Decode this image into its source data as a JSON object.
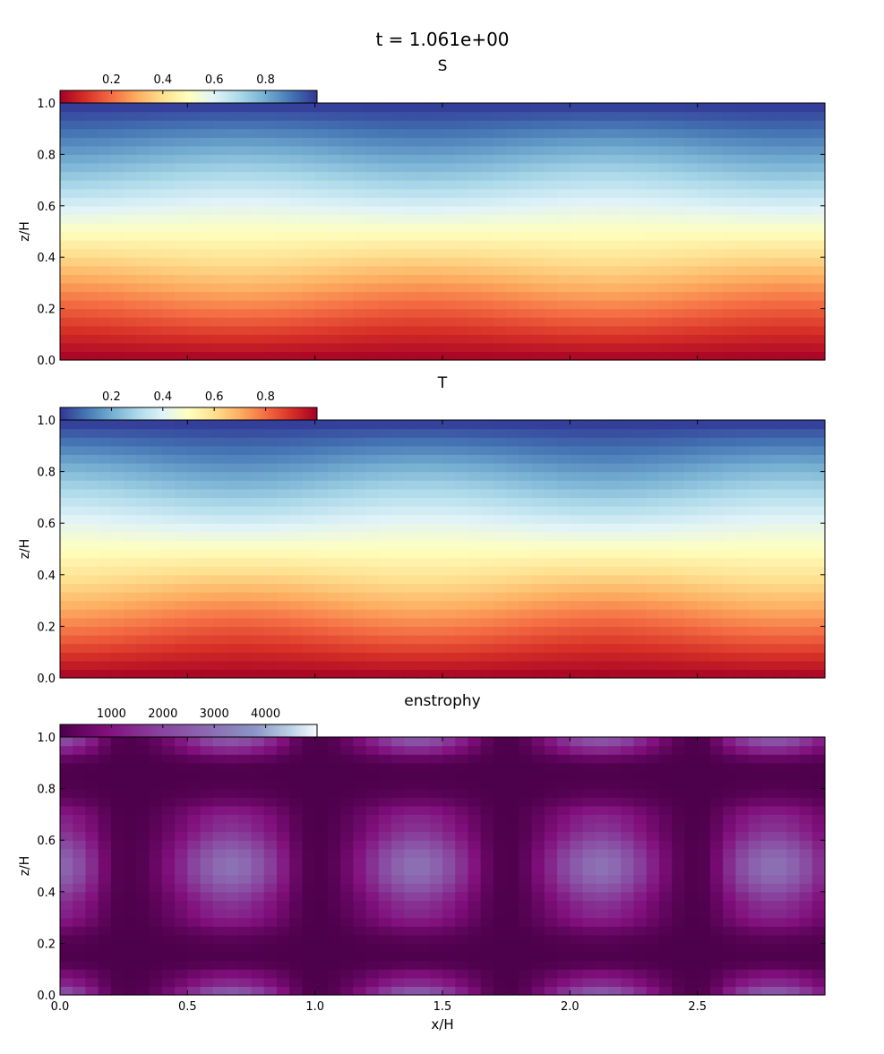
{
  "figure_title": "t = 1.061e+00",
  "chart_data": [
    {
      "type": "heatmap",
      "title": "S",
      "ylabel": "z/H",
      "xlabel": "",
      "xlim": [
        0.0,
        3.0
      ],
      "ylim": [
        0.0,
        1.0
      ],
      "colormap": "RdYlBu",
      "colorbar_range": [
        0.0,
        1.0
      ],
      "colorbar_ticks": [
        "0.2",
        "0.4",
        "0.6",
        "0.8"
      ],
      "y_ticks": [
        "0.0",
        "0.2",
        "0.4",
        "0.6",
        "0.8",
        "1.0"
      ],
      "field": "S(z) = z with weak horizontal waviness (period ~1.44 in x)"
    },
    {
      "type": "heatmap",
      "title": "T",
      "ylabel": "z/H",
      "xlabel": "",
      "xlim": [
        0.0,
        3.0
      ],
      "ylim": [
        0.0,
        1.0
      ],
      "colormap": "RdYlBu_r",
      "colorbar_range": [
        0.0,
        1.0
      ],
      "colorbar_ticks": [
        "0.2",
        "0.4",
        "0.6",
        "0.8"
      ],
      "y_ticks": [
        "0.0",
        "0.2",
        "0.4",
        "0.6",
        "0.8",
        "1.0"
      ],
      "field": "T(z) = 1 - z with weak horizontal waviness"
    },
    {
      "type": "heatmap",
      "title": "enstrophy",
      "ylabel": "z/H",
      "xlabel": "x/H",
      "xlim": [
        0.0,
        3.0
      ],
      "ylim": [
        0.0,
        1.0
      ],
      "colormap": "BuPu",
      "colorbar_range": [
        0,
        5000
      ],
      "colorbar_ticks": [
        "1000",
        "2000",
        "3000",
        "4000"
      ],
      "x_ticks": [
        "0.0",
        "0.5",
        "1.0",
        "1.5",
        "2.0",
        "2.5"
      ],
      "y_ticks": [
        "0.0",
        "0.2",
        "0.4",
        "0.6",
        "0.8",
        "1.0"
      ],
      "field": "Cellular pattern: maxima centered near x = 0.67, 1.4, 2.12, 2.8 at z = 0.5 and along top/bottom walls; minima near x = 0.25, 1.0, 1.75, 2.5 and near z = 0.2, 0.85"
    }
  ]
}
